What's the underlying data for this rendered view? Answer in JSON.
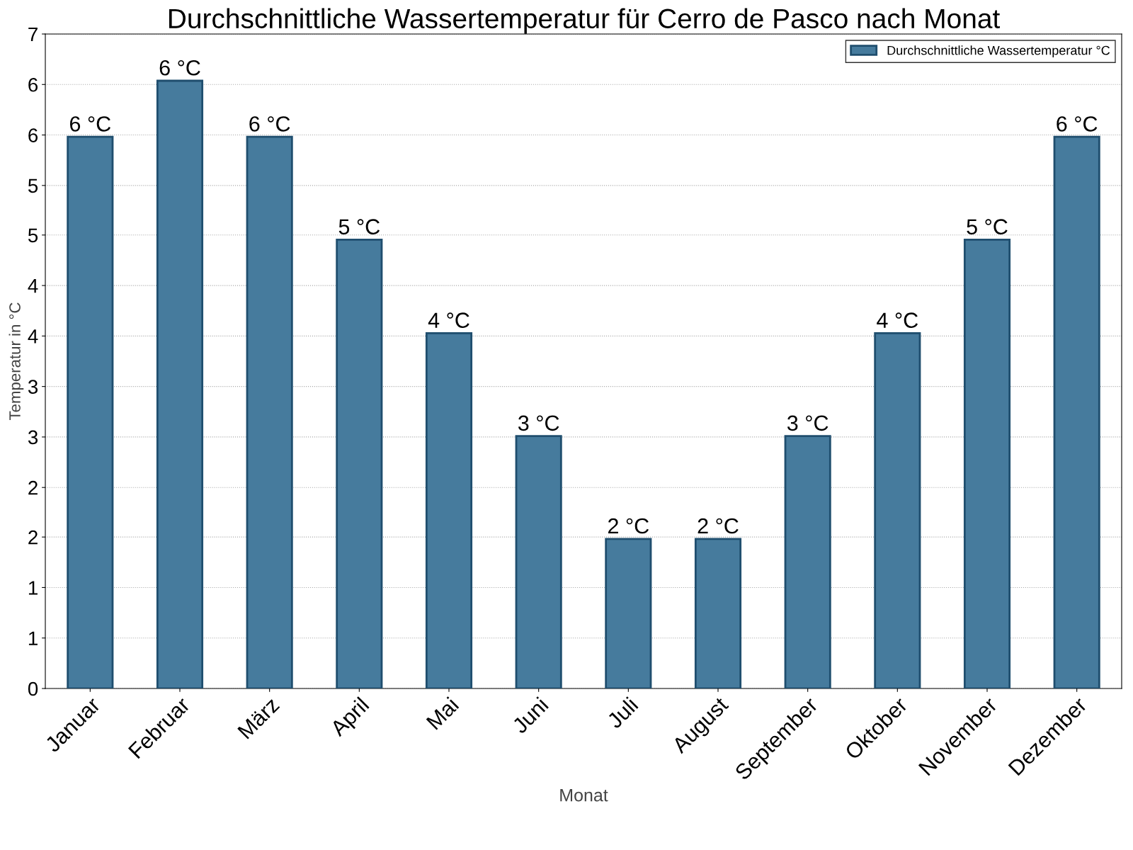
{
  "chart_data": {
    "type": "bar",
    "title": "Durchschnittliche Wassertemperatur für Cerro de Pasco nach Monat",
    "xlabel": "Monat",
    "ylabel": "Temperatur in °C",
    "categories": [
      "Januar",
      "Februar",
      "März",
      "April",
      "Mai",
      "Juni",
      "Juli",
      "August",
      "September",
      "Oktober",
      "November",
      "Dezember"
    ],
    "series": [
      {
        "name": "Durchschnittliche Wassertemperatur °C",
        "color": "#467b9d",
        "values": [
          5.9,
          6.5,
          5.9,
          4.8,
          3.8,
          2.7,
          1.6,
          1.6,
          2.7,
          3.8,
          4.8,
          5.9
        ],
        "value_labels": [
          "6 °C",
          "6 °C",
          "6 °C",
          "5 °C",
          "4 °C",
          "3 °C",
          "2 °C",
          "2 °C",
          "3 °C",
          "4 °C",
          "5 °C",
          "6 °C"
        ]
      }
    ],
    "ylim": [
      0,
      7
    ],
    "yticks": [
      0,
      {
        "value": 0.54,
        "label": "1"
      },
      {
        "value": 1.08,
        "label": "1"
      },
      {
        "value": 1.62,
        "label": "2"
      },
      {
        "value": 2.15,
        "label": "2"
      },
      {
        "value": 2.69,
        "label": "3"
      },
      {
        "value": 3.23,
        "label": "3"
      },
      {
        "value": 3.77,
        "label": "4"
      },
      {
        "value": 4.31,
        "label": "4"
      },
      {
        "value": 4.85,
        "label": "5"
      },
      {
        "value": 5.38,
        "label": "5"
      },
      {
        "value": 5.92,
        "label": "6"
      },
      {
        "value": 6.46,
        "label": "6"
      },
      7
    ],
    "grid": "y",
    "legend": "top right"
  }
}
